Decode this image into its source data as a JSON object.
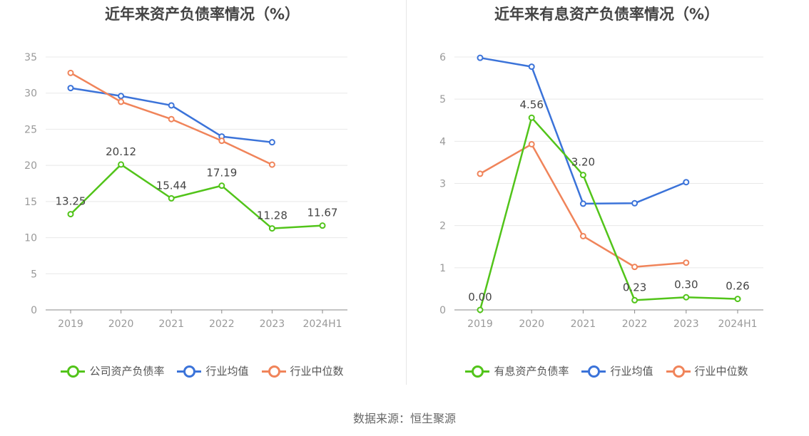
{
  "source": "数据来源：恒生聚源",
  "chart_data": [
    {
      "type": "line",
      "title": "近年来资产负债率情况（%）",
      "categories": [
        "2019",
        "2020",
        "2021",
        "2022",
        "2023",
        "2024H1"
      ],
      "ylim": [
        0,
        35
      ],
      "yticks": [
        0,
        5,
        10,
        15,
        20,
        25,
        30,
        35
      ],
      "grid": true,
      "legend_position": "bottom",
      "series": [
        {
          "name": "公司资产负债率",
          "color": "#52c41a",
          "values": [
            13.25,
            20.12,
            15.44,
            17.19,
            11.28,
            11.67
          ],
          "labels": [
            "13.25",
            "20.12",
            "15.44",
            "17.19",
            "11.28",
            "11.67"
          ]
        },
        {
          "name": "行业均值",
          "color": "#3b73d9",
          "values": [
            30.7,
            29.6,
            28.3,
            24.0,
            23.2,
            null
          ]
        },
        {
          "name": "行业中位数",
          "color": "#f0845a",
          "values": [
            32.8,
            28.8,
            26.4,
            23.4,
            20.1,
            null
          ]
        }
      ]
    },
    {
      "type": "line",
      "title": "近年来有息资产负债率情况（%）",
      "categories": [
        "2019",
        "2020",
        "2021",
        "2022",
        "2023",
        "2024H1"
      ],
      "ylim": [
        0,
        6
      ],
      "yticks": [
        0,
        1,
        2,
        3,
        4,
        5,
        6
      ],
      "grid": true,
      "legend_position": "bottom",
      "series": [
        {
          "name": "有息资产负债率",
          "color": "#52c41a",
          "values": [
            0.0,
            4.56,
            3.2,
            0.23,
            0.3,
            0.26
          ],
          "labels": [
            "0.00",
            "4.56",
            "3.20",
            "0.23",
            "0.30",
            "0.26"
          ]
        },
        {
          "name": "行业均值",
          "color": "#3b73d9",
          "values": [
            5.98,
            5.77,
            2.52,
            2.53,
            3.03,
            null
          ]
        },
        {
          "name": "行业中位数",
          "color": "#f0845a",
          "values": [
            3.23,
            3.93,
            1.75,
            1.02,
            1.12,
            null
          ]
        }
      ]
    }
  ]
}
